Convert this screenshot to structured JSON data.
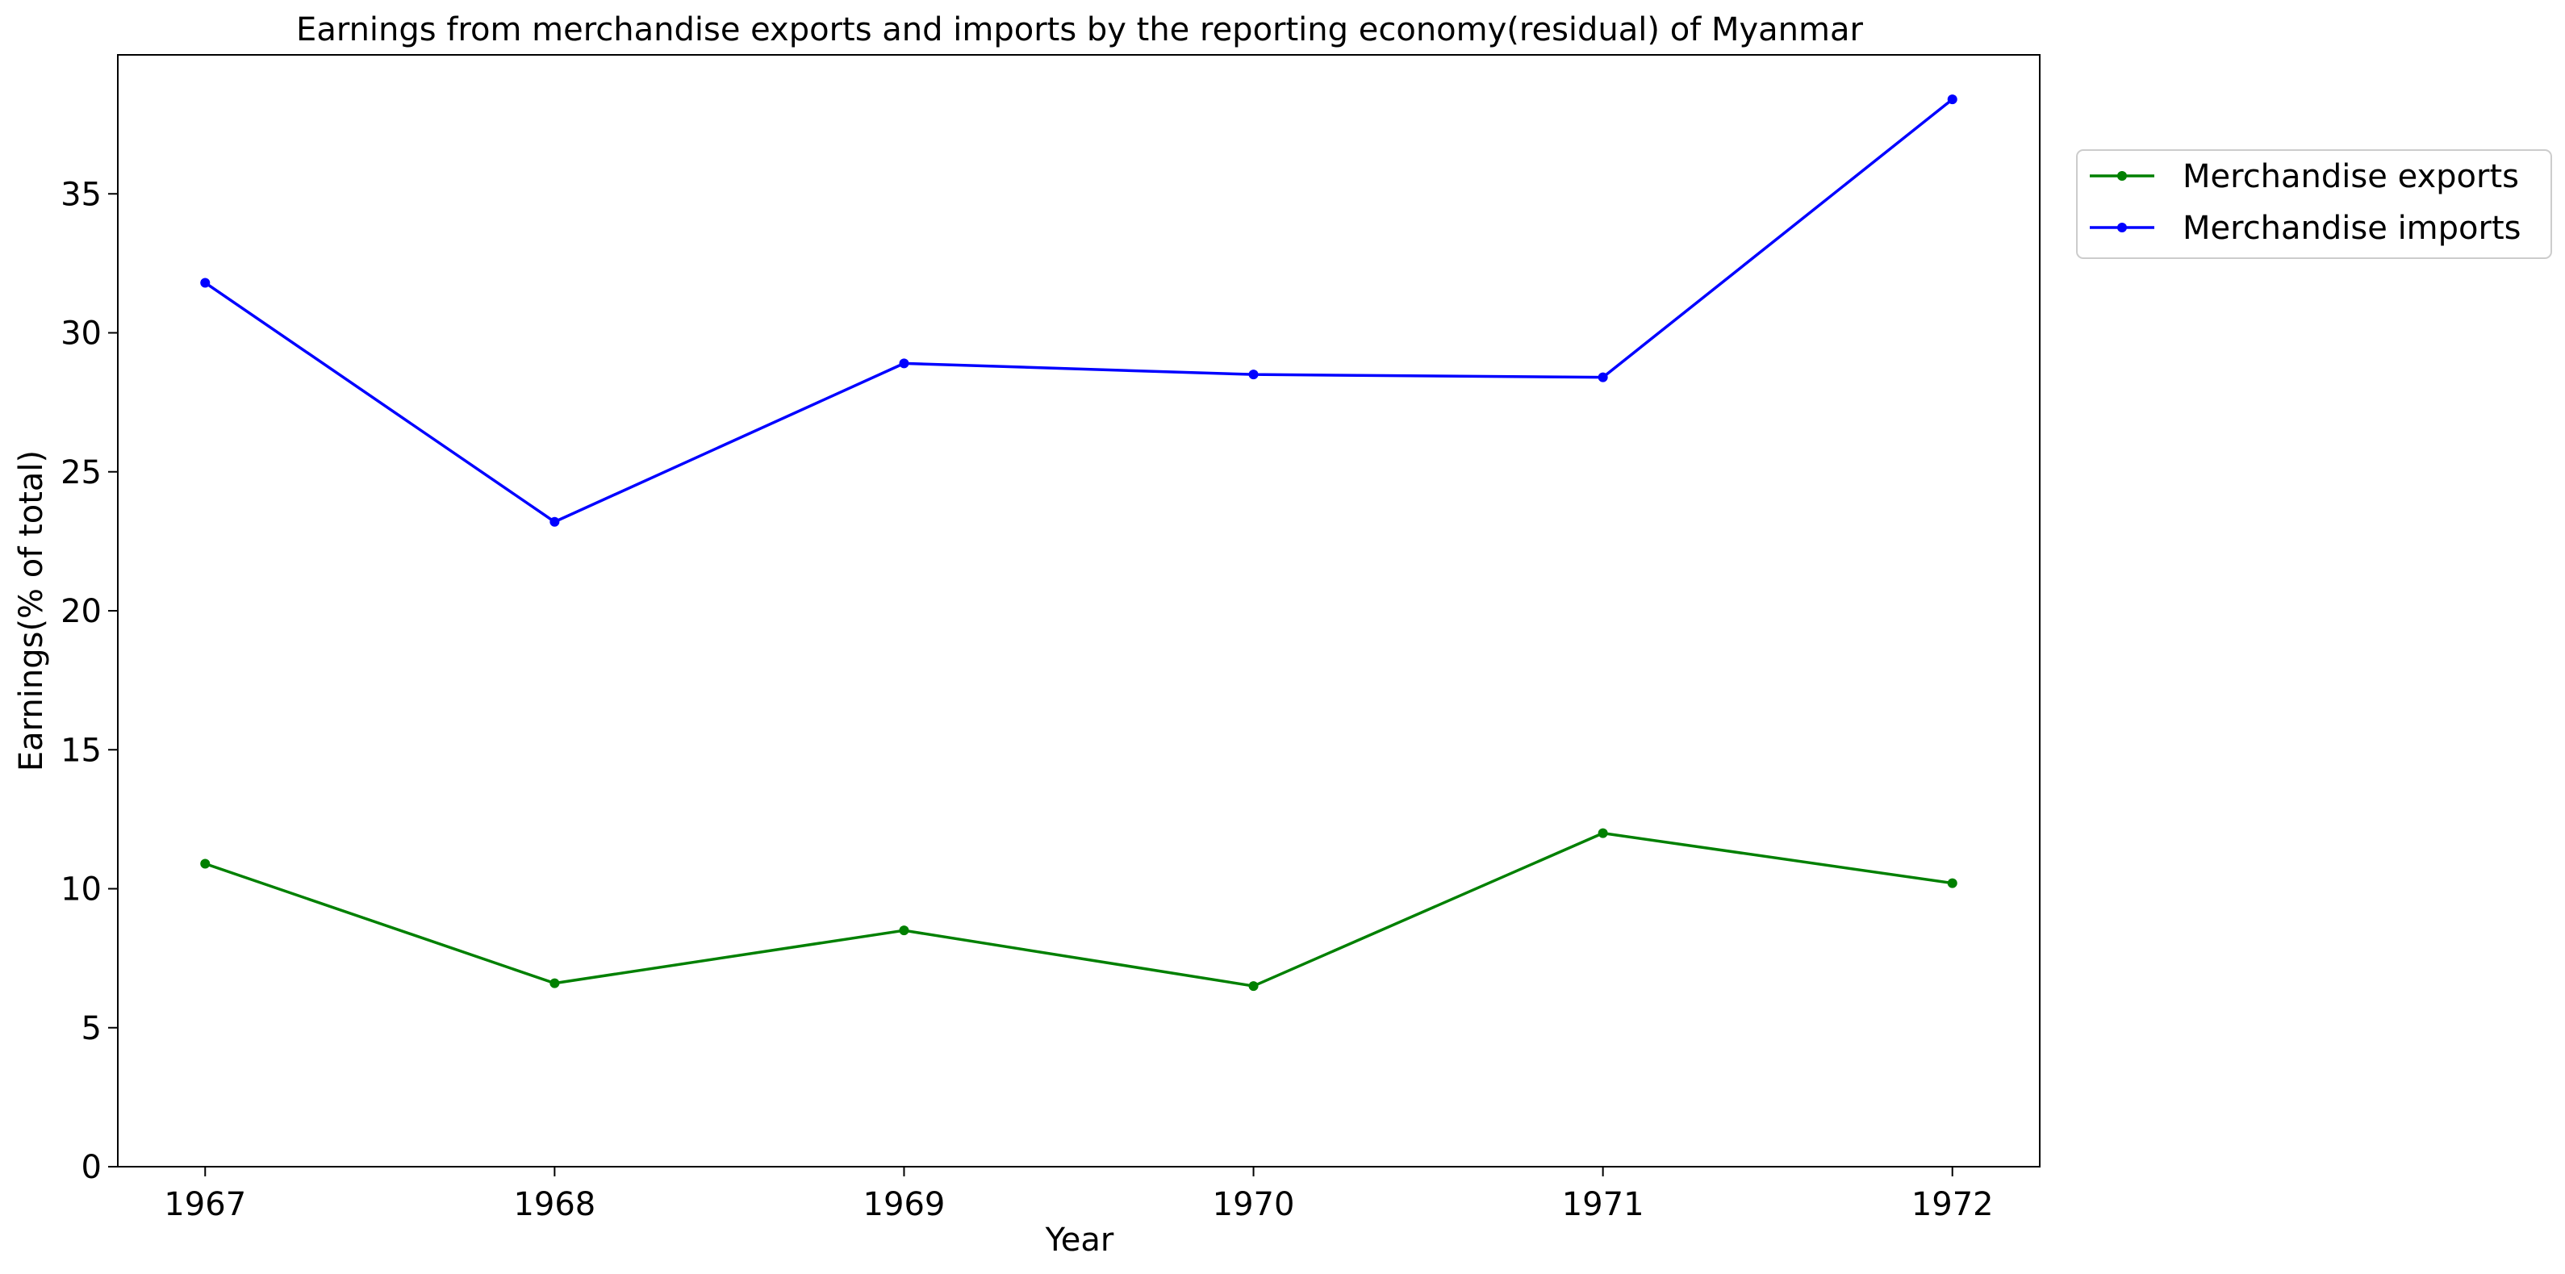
{
  "chart_data": {
    "type": "line",
    "title": "Earnings from merchandise exports and imports by the reporting economy(residual) of Myanmar",
    "xlabel": "Year",
    "ylabel": "Earnings(% of total)",
    "x": [
      1967,
      1968,
      1969,
      1970,
      1971,
      1972
    ],
    "x_tick_labels": [
      "1967",
      "1968",
      "1969",
      "1970",
      "1971",
      "1972"
    ],
    "xlim": [
      1966.75,
      1972.25
    ],
    "ylim": [
      0,
      40
    ],
    "y_ticks": [
      0,
      5,
      10,
      15,
      20,
      25,
      30,
      35
    ],
    "y_tick_labels": [
      "0",
      "5",
      "10",
      "15",
      "20",
      "25",
      "30",
      "35"
    ],
    "grid": false,
    "legend_position": "outside-top-right",
    "series": [
      {
        "name": "Merchandise exports",
        "color": "#008000",
        "values": [
          10.9,
          6.6,
          8.5,
          6.5,
          12.0,
          10.2
        ]
      },
      {
        "name": "Merchandise imports",
        "color": "#0000ff",
        "values": [
          31.8,
          23.2,
          28.9,
          28.5,
          28.4,
          38.4
        ]
      }
    ]
  }
}
